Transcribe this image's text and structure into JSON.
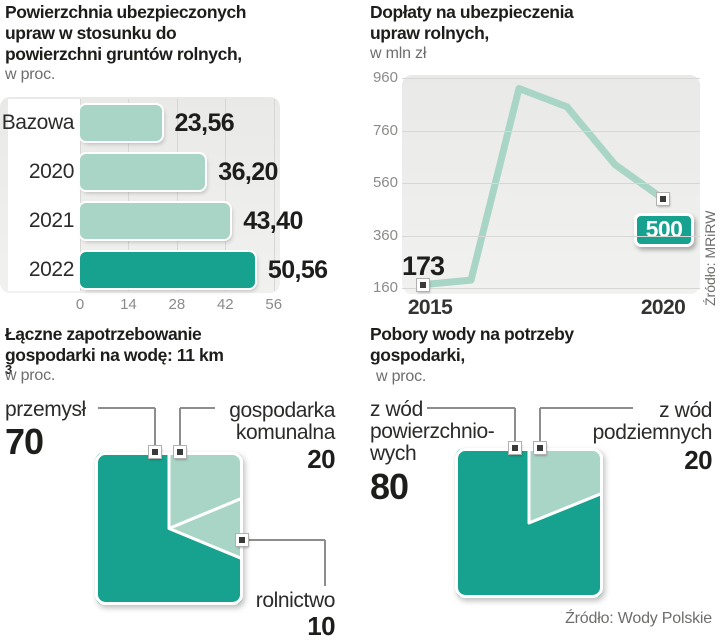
{
  "colors": {
    "accent_dark": "#16a28f",
    "accent_light": "#a9d5c6",
    "panel_top": "#e9e9e7",
    "panel_bottom": "#f1f1ef",
    "grid": "#d7d7d5",
    "title": "#1d1d1b",
    "text_dark": "#2b2b29",
    "gray": "#6d6d6b",
    "axis": "#8b8b89",
    "marker": "#3a3a38",
    "cline": "#8d8d8b"
  },
  "chart_data": [
    {
      "id": "insured-area-bars",
      "type": "bar",
      "title_lines": [
        "Powierzchnia ubezpieczonych",
        "upraw w stosunku do",
        "powierzchni gruntów rolnych,"
      ],
      "subtitle": "w proc.",
      "categories": [
        "Bazowa",
        "2020",
        "2021",
        "2022"
      ],
      "values": [
        23.56,
        36.2,
        43.4,
        50.56
      ],
      "value_labels": [
        "23,56",
        "36,20",
        "43,40",
        "50,56"
      ],
      "bar_tones": [
        "light",
        "light",
        "light",
        "dark"
      ],
      "xlim": [
        0,
        56
      ],
      "x_ticks": [
        0,
        14,
        28,
        42,
        56
      ],
      "grid": "vertical"
    },
    {
      "id": "crop-insurance-subsidies-line",
      "type": "line",
      "title_lines": [
        "Dopłaty na ubezpieczenia",
        "upraw rolnych,"
      ],
      "subtitle": "w mln zł",
      "x": [
        2015,
        2016,
        2017,
        2018,
        2019,
        2020
      ],
      "values": [
        173,
        190,
        920,
        850,
        630,
        500
      ],
      "ylim": [
        160,
        960
      ],
      "y_ticks": [
        960,
        760,
        560,
        360,
        160
      ],
      "x_tick_labels": [
        "2015",
        "2020"
      ],
      "first_point_label": "173",
      "last_point_badge": "500",
      "source": "Źródło: MRiRW"
    },
    {
      "id": "water-demand-square-pie",
      "type": "pie",
      "title_lines": [
        "Łączne zapotrzebowanie",
        "gospodarki na wodę: 11 km"
      ],
      "title_superscript": "3",
      "subtitle": "w proc.",
      "slices": [
        {
          "label": "gospodarka komunalna",
          "label_lines": [
            "gospodarka",
            "komunalna"
          ],
          "value": 20,
          "tone": "light"
        },
        {
          "label": "rolnictwo",
          "label_lines": [
            "rolnictwo"
          ],
          "value": 10,
          "tone": "light"
        },
        {
          "label": "przemysł",
          "label_lines": [
            "przemysł"
          ],
          "value": 70,
          "tone": "dark"
        }
      ]
    },
    {
      "id": "water-intake-square-pie",
      "type": "pie",
      "title_lines": [
        "Pobory wody na potrzeby",
        "gospodarki,"
      ],
      "subtitle": "w proc.",
      "slices": [
        {
          "label": "z wód podziemnych",
          "label_lines": [
            "z wód",
            "podziemnych"
          ],
          "value": 20,
          "tone": "light"
        },
        {
          "label": "z wód powierzchniowych",
          "label_lines": [
            "z wód",
            "powierzchnio-",
            "wych"
          ],
          "value": 80,
          "tone": "dark"
        }
      ],
      "source": "Źródło: Wody Polskie"
    }
  ]
}
